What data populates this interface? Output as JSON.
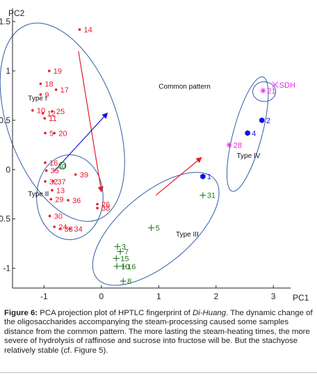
{
  "chart_data": {
    "type": "scatter",
    "title": "",
    "xlabel": "PC1",
    "ylabel": "PC2",
    "xlim": [
      -1.55,
      3.3
    ],
    "ylim": [
      -1.2,
      1.62
    ],
    "x_ticks": [
      -1,
      0,
      1,
      2,
      3
    ],
    "x_tick_labels": [
      "-1",
      "0",
      "1",
      "2",
      "3"
    ],
    "y_ticks": [
      1.5,
      1,
      0.5,
      0,
      -0.5,
      -1
    ],
    "y_tick_labels": [
      "1.5",
      "1",
      "0.5",
      "0",
      "-0.5",
      "-1"
    ],
    "grid": false,
    "series": [
      {
        "marker": "dot",
        "color": "#e8182b",
        "points": [
          {
            "x": -0.38,
            "y": 1.42,
            "label": "14"
          },
          {
            "x": -0.91,
            "y": 1.0,
            "label": "19"
          },
          {
            "x": -1.06,
            "y": 0.87,
            "label": "18"
          },
          {
            "x": -0.79,
            "y": 0.81,
            "label": "17"
          },
          {
            "x": -1.06,
            "y": 0.76,
            "label": "9"
          },
          {
            "x": -1.2,
            "y": 0.6,
            "label": "10"
          },
          {
            "x": -1.02,
            "y": 0.57,
            "label": "12"
          },
          {
            "x": -0.86,
            "y": 0.59,
            "label": "25"
          },
          {
            "x": -0.99,
            "y": 0.52,
            "label": "11"
          },
          {
            "x": -0.98,
            "y": 0.37,
            "label": "5"
          },
          {
            "x": -0.82,
            "y": 0.37,
            "label": "20"
          },
          {
            "x": -0.98,
            "y": 0.07,
            "label": "16"
          },
          {
            "x": -0.96,
            "y": -0.01,
            "label": "35"
          },
          {
            "x": -0.98,
            "y": -0.12,
            "label": "32"
          },
          {
            "x": -0.84,
            "y": -0.12,
            "label": "37"
          },
          {
            "x": -0.86,
            "y": -0.21,
            "label": "13"
          },
          {
            "x": -0.45,
            "y": -0.05,
            "label": "39"
          },
          {
            "x": -0.88,
            "y": -0.3,
            "label": "29"
          },
          {
            "x": -0.58,
            "y": -0.31,
            "label": "36"
          },
          {
            "x": -0.07,
            "y": -0.35,
            "label": "26"
          },
          {
            "x": -0.07,
            "y": -0.39,
            "label": "38"
          },
          {
            "x": -0.9,
            "y": -0.47,
            "label": "30"
          },
          {
            "x": -0.82,
            "y": -0.58,
            "label": "24"
          },
          {
            "x": -0.72,
            "y": -0.6,
            "label": "33"
          },
          {
            "x": -0.55,
            "y": -0.6,
            "label": "34"
          }
        ]
      },
      {
        "marker": "hexagon",
        "color": "#1010e6",
        "points": [
          {
            "x": 1.77,
            "y": -0.07,
            "label": "1"
          },
          {
            "x": 2.8,
            "y": 0.5,
            "label": "2"
          },
          {
            "x": 2.55,
            "y": 0.37,
            "label": "4"
          }
        ]
      },
      {
        "marker": "asterisk",
        "color": "#ee22ee",
        "points": [
          {
            "x": 2.82,
            "y": 0.8,
            "label": "21"
          },
          {
            "x": 2.23,
            "y": 0.25,
            "label": "28"
          }
        ]
      },
      {
        "marker": "x",
        "color": "#ee22ee",
        "points": [
          {
            "x": 3.03,
            "y": 0.86,
            "label": "SDH"
          }
        ]
      },
      {
        "marker": "plus",
        "color": "#1c7a1c",
        "points": [
          {
            "x": 1.77,
            "y": -0.26,
            "label": "31"
          },
          {
            "x": 0.87,
            "y": -0.59,
            "label": "5"
          },
          {
            "x": 0.28,
            "y": -0.78,
            "label": "3"
          },
          {
            "x": 0.33,
            "y": -0.83,
            "label": "7"
          },
          {
            "x": 0.26,
            "y": -0.9,
            "label": "15"
          },
          {
            "x": 0.27,
            "y": -0.98,
            "label": "10"
          },
          {
            "x": 0.38,
            "y": -0.98,
            "label": "16"
          },
          {
            "x": 0.38,
            "y": -1.13,
            "label": "8"
          }
        ]
      },
      {
        "marker": "circle-open",
        "color": "#1c7a1c",
        "points": [
          {
            "x": -0.68,
            "y": 0.04,
            "label": "td"
          }
        ]
      }
    ],
    "annotations": [
      {
        "text": "Common pattern",
        "x": 1.0,
        "y": 0.82
      },
      {
        "text": "Type I",
        "x": -1.28,
        "y": 0.7
      },
      {
        "text": "Type II",
        "x": -1.28,
        "y": -0.27
      },
      {
        "text": "Type III",
        "x": 1.3,
        "y": -0.68
      },
      {
        "text": "Type IV",
        "x": 2.36,
        "y": 0.12
      }
    ],
    "groups": [
      {
        "name": "Type I",
        "center": [
          -0.68,
          0.48
        ],
        "rx": 0.95,
        "ry": 1.05,
        "rotation_deg": -20
      },
      {
        "name": "Type II",
        "center": [
          -0.55,
          -0.28
        ],
        "rx": 0.58,
        "ry": 0.43,
        "rotation_deg": 0
      },
      {
        "name": "Type III",
        "center": [
          0.95,
          -0.6
        ],
        "rx": 0.62,
        "ry": 0.78,
        "rotation_deg": 50
      },
      {
        "name": "Type IV",
        "center": [
          2.55,
          0.36
        ],
        "rx": 0.25,
        "ry": 0.6,
        "rotation_deg": 15
      },
      {
        "name": "SDH",
        "center": [
          2.84,
          0.79
        ],
        "rx": 0.2,
        "ry": 0.1,
        "rotation_deg": 0
      }
    ],
    "arrows": [
      {
        "color": "#e8182b",
        "from": [
          -0.4,
          1.2
        ],
        "to": [
          0.0,
          -0.22
        ]
      },
      {
        "color": "#1515d0",
        "from": [
          -0.83,
          -0.02
        ],
        "to": [
          0.1,
          0.57
        ]
      },
      {
        "color": "#e8182b",
        "from": [
          0.95,
          -0.26
        ],
        "to": [
          1.74,
          0.12
        ]
      }
    ]
  },
  "caption": {
    "figure_label": "Figure 6:",
    "text_before": " PCA projection plot of HPTLC fingerprint of ",
    "italic": "Di-Huang",
    "text_after": ". The dynamic change of the oligosaccharides accompanying the steam-processing caused some samples distance from the common pattern. The more lasting the steam-heating times, the more severe of hydrolysis of raffinose and sucrose into fructose will be. But the stachyose relatively stable (cf. Figure 5)."
  }
}
